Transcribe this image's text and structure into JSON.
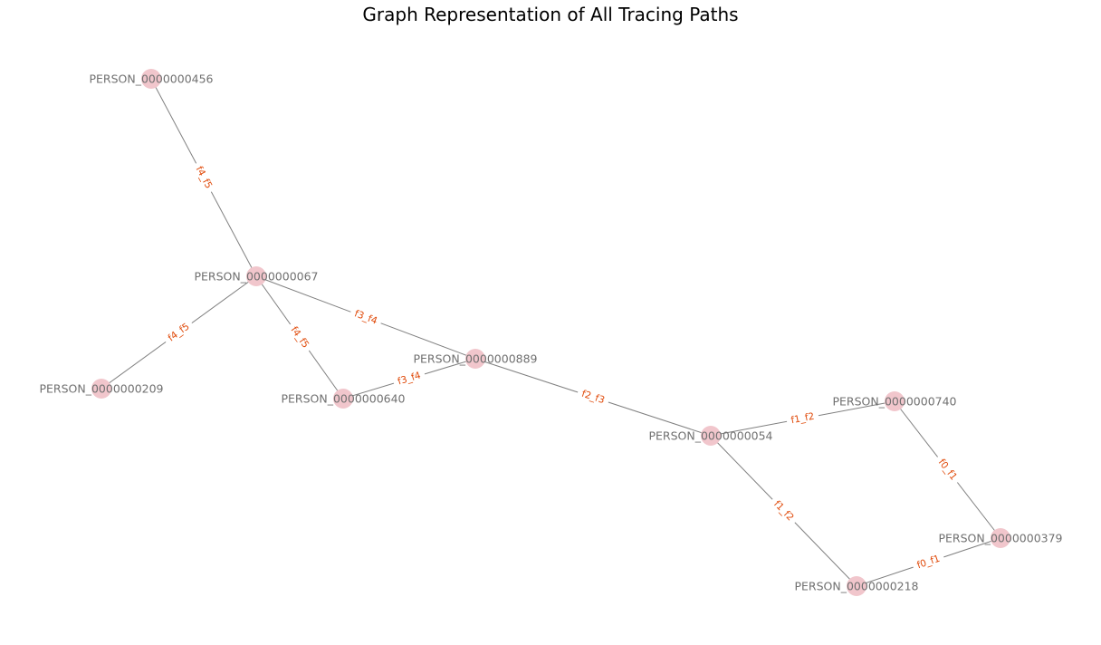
{
  "title": "Graph Representation of All Tracing Paths",
  "colors": {
    "node_fill": "#f1c6cc",
    "node_text": "#707070",
    "edge_stroke": "#808080",
    "edge_label_text": "#e04a0a",
    "title_text": "#000000"
  },
  "nodes": [
    {
      "id": "PERSON_0000000456",
      "label": "PERSON_0000000456"
    },
    {
      "id": "PERSON_0000000067",
      "label": "PERSON_0000000067"
    },
    {
      "id": "PERSON_0000000209",
      "label": "PERSON_0000000209"
    },
    {
      "id": "PERSON_0000000640",
      "label": "PERSON_0000000640"
    },
    {
      "id": "PERSON_0000000889",
      "label": "PERSON_0000000889"
    },
    {
      "id": "PERSON_0000000054",
      "label": "PERSON_0000000054"
    },
    {
      "id": "PERSON_0000000740",
      "label": "PERSON_0000000740"
    },
    {
      "id": "PERSON_0000000379",
      "label": "PERSON_0000000379"
    },
    {
      "id": "PERSON_0000000218",
      "label": "PERSON_0000000218"
    }
  ],
  "edges": [
    {
      "source": "PERSON_0000000456",
      "target": "PERSON_0000000067",
      "label": "f4_f5"
    },
    {
      "source": "PERSON_0000000067",
      "target": "PERSON_0000000209",
      "label": "f4_f5"
    },
    {
      "source": "PERSON_0000000067",
      "target": "PERSON_0000000640",
      "label": "f4_f5"
    },
    {
      "source": "PERSON_0000000067",
      "target": "PERSON_0000000889",
      "label": "f3_f4"
    },
    {
      "source": "PERSON_0000000640",
      "target": "PERSON_0000000889",
      "label": "f3_f4"
    },
    {
      "source": "PERSON_0000000889",
      "target": "PERSON_0000000054",
      "label": "f2_f3"
    },
    {
      "source": "PERSON_0000000054",
      "target": "PERSON_0000000740",
      "label": "f1_f2"
    },
    {
      "source": "PERSON_0000000054",
      "target": "PERSON_0000000218",
      "label": "f1_f2"
    },
    {
      "source": "PERSON_0000000740",
      "target": "PERSON_0000000379",
      "label": "f0_f1"
    },
    {
      "source": "PERSON_0000000218",
      "target": "PERSON_0000000379",
      "label": "f0_f1"
    }
  ]
}
